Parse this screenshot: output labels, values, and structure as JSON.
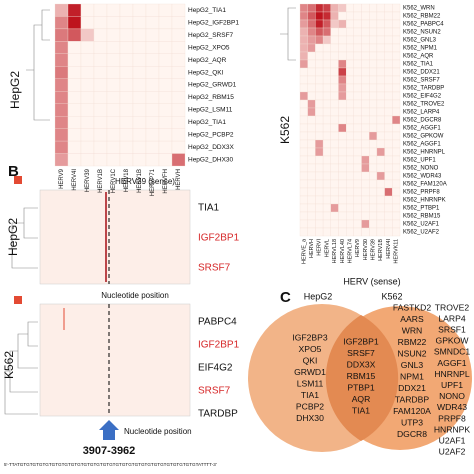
{
  "panel_a": {
    "hepg2": {
      "label": "HepG2",
      "rows": [
        "HepG2_TIA1",
        "HepG2_IGF2BP1",
        "HepG2_SRSF7",
        "HepG2_XPO5",
        "HepG2_AQR",
        "HepG2_QKI",
        "HepG2_GRWD1",
        "HepG2_RBM15",
        "HepG2_LSM11",
        "HepG2_TIA1",
        "HepG2_PCBP2",
        "HepG2_DDX3X",
        "HepG2_DHX30"
      ],
      "columns": [
        "HERV9",
        "HERV4I",
        "HERV39",
        "HERV1B",
        "HERV1C",
        "HERV18",
        "HERV1B",
        "HERVP71",
        "HERVFH",
        "HERVH"
      ],
      "values": [
        [
          0.3,
          0.95,
          0,
          0,
          0,
          0,
          0,
          0,
          0,
          0
        ],
        [
          0.5,
          1,
          0,
          0,
          0,
          0,
          0,
          0,
          0,
          0
        ],
        [
          0.55,
          0.7,
          0.2,
          0,
          0,
          0,
          0,
          0,
          0,
          0
        ],
        [
          0.5,
          0,
          0,
          0,
          0,
          0,
          0,
          0,
          0,
          0
        ],
        [
          0.5,
          0,
          0,
          0,
          0,
          0,
          0,
          0,
          0,
          0
        ],
        [
          0.55,
          0,
          0,
          0,
          0,
          0,
          0,
          0,
          0,
          0
        ],
        [
          0.5,
          0,
          0,
          0,
          0,
          0,
          0,
          0,
          0,
          0
        ],
        [
          0.5,
          0,
          0,
          0,
          0,
          0,
          0,
          0,
          0,
          0
        ],
        [
          0.5,
          0,
          0,
          0,
          0,
          0,
          0,
          0,
          0,
          0
        ],
        [
          0.5,
          0,
          0,
          0,
          0,
          0,
          0,
          0,
          0,
          0
        ],
        [
          0.5,
          0,
          0,
          0,
          0,
          0,
          0,
          0,
          0,
          0
        ],
        [
          0.5,
          0,
          0,
          0,
          0,
          0,
          0,
          0,
          0,
          0
        ],
        [
          0.4,
          0,
          0,
          0,
          0,
          0,
          0,
          0,
          0,
          0.6
        ]
      ]
    },
    "k562": {
      "label": "K562",
      "rows": [
        "K562_WRN",
        "K562_RBM22",
        "K562_PABPC4",
        "K562_NSUN2",
        "K562_GNL3",
        "K562_NPM1",
        "K562_AQR",
        "K562_TIA1",
        "K562_DDX21",
        "K562_SRSF7",
        "K562_TARDBP",
        "K562_EIF4G2",
        "K562_TROVE2",
        "K562_LARP4",
        "K562_DGCR8",
        "K562_AGGF1",
        "K562_GPKOW",
        "K562_AGGF1",
        "K562_HNRNPL",
        "K562_UPF1",
        "K562_NONO",
        "K562_WDR43",
        "K562_FAM120A",
        "K562_PRPF8",
        "K562_HNRNPK",
        "K562_PTBP1",
        "K562_RBM15",
        "K562_U2AF1",
        "K562_U2AF2"
      ],
      "columns": [
        "HERVE_a",
        "HERVH",
        "HERVI",
        "HERVL",
        "HERVL18",
        "HERVL40",
        "HERVL74",
        "HERV9",
        "HERV30",
        "HERV39",
        "HERV1B",
        "HERV4I",
        "HERVK11"
      ],
      "values": [
        [
          0.5,
          0.6,
          0.9,
          0.8,
          0.3,
          0.2,
          0,
          0,
          0,
          0,
          0,
          0,
          0
        ],
        [
          0.5,
          0.7,
          1,
          0.9,
          0.3,
          0,
          0,
          0,
          0,
          0,
          0,
          0,
          0
        ],
        [
          0.4,
          0.6,
          0.95,
          0.7,
          0.2,
          0.3,
          0,
          0,
          0,
          0,
          0,
          0,
          0
        ],
        [
          0.3,
          0.5,
          0.7,
          0.6,
          0,
          0,
          0,
          0,
          0,
          0,
          0,
          0,
          0
        ],
        [
          0.3,
          0.4,
          0.5,
          0.2,
          0,
          0,
          0,
          0,
          0,
          0,
          0,
          0,
          0
        ],
        [
          0.3,
          0.4,
          0,
          0,
          0,
          0,
          0,
          0,
          0,
          0,
          0,
          0,
          0
        ],
        [
          0.3,
          0,
          0,
          0,
          0,
          0,
          0,
          0,
          0,
          0,
          0,
          0,
          0
        ],
        [
          0.4,
          0,
          0,
          0,
          0,
          0.5,
          0,
          0,
          0,
          0,
          0,
          0,
          0
        ],
        [
          0,
          0,
          0,
          0,
          0,
          0.8,
          0,
          0,
          0,
          0,
          0,
          0,
          0
        ],
        [
          0,
          0,
          0,
          0,
          0,
          0.5,
          0,
          0,
          0,
          0,
          0,
          0,
          0
        ],
        [
          0,
          0,
          0,
          0,
          0,
          0.4,
          0,
          0,
          0,
          0,
          0,
          0,
          0
        ],
        [
          0.4,
          0,
          0,
          0,
          0,
          0.4,
          0,
          0,
          0,
          0,
          0,
          0,
          0
        ],
        [
          0,
          0.4,
          0,
          0,
          0,
          0,
          0,
          0,
          0,
          0,
          0,
          0,
          0
        ],
        [
          0,
          0.4,
          0,
          0,
          0,
          0,
          0,
          0,
          0,
          0,
          0,
          0,
          0
        ],
        [
          0,
          0,
          0,
          0,
          0,
          0,
          0,
          0,
          0,
          0,
          0,
          0,
          0.5
        ],
        [
          0,
          0,
          0,
          0,
          0,
          0.5,
          0,
          0,
          0,
          0,
          0,
          0,
          0
        ],
        [
          0,
          0,
          0,
          0,
          0,
          0,
          0,
          0,
          0,
          0.4,
          0,
          0,
          0
        ],
        [
          0,
          0,
          0.4,
          0,
          0,
          0,
          0,
          0,
          0,
          0,
          0,
          0,
          0
        ],
        [
          0,
          0,
          0.4,
          0,
          0,
          0,
          0,
          0,
          0,
          0,
          0.4,
          0,
          0
        ],
        [
          0,
          0,
          0,
          0,
          0,
          0,
          0,
          0,
          0.4,
          0,
          0,
          0,
          0
        ],
        [
          0,
          0,
          0,
          0,
          0,
          0,
          0,
          0,
          0.4,
          0,
          0,
          0,
          0
        ],
        [
          0,
          0,
          0,
          0,
          0,
          0,
          0,
          0,
          0,
          0,
          0.4,
          0,
          0
        ],
        [
          0,
          0,
          0,
          0,
          0,
          0,
          0,
          0,
          0,
          0,
          0,
          0,
          0
        ],
        [
          0,
          0,
          0,
          0,
          0,
          0,
          0,
          0,
          0,
          0,
          0,
          0.6,
          0
        ],
        [
          0,
          0,
          0,
          0,
          0,
          0,
          0,
          0,
          0,
          0,
          0,
          0,
          0
        ],
        [
          0,
          0,
          0,
          0,
          0.4,
          0,
          0,
          0,
          0,
          0,
          0,
          0,
          0
        ],
        [
          0,
          0,
          0,
          0,
          0,
          0,
          0,
          0,
          0,
          0,
          0,
          0,
          0
        ],
        [
          0,
          0,
          0,
          0,
          0,
          0,
          0,
          0,
          0.4,
          0,
          0,
          0,
          0
        ],
        [
          0,
          0,
          0,
          0,
          0,
          0,
          0,
          0,
          0,
          0,
          0,
          0,
          0
        ]
      ]
    }
  },
  "panel_b": {
    "label": "B",
    "title": "HERV39 (sense)",
    "x_label": "Nucleotide position",
    "hepg2": {
      "label": "HepG2",
      "rows": [
        {
          "name": "TIA1",
          "highlight": false
        },
        {
          "name": "IGF2BP1",
          "highlight": true
        },
        {
          "name": "SRSF7",
          "highlight": true
        }
      ]
    },
    "k562": {
      "label": "K562",
      "rows": [
        {
          "name": "PABPC4",
          "highlight": false
        },
        {
          "name": "IGF2BP1",
          "highlight": true
        },
        {
          "name": "EIF4G2",
          "highlight": false
        },
        {
          "name": "SRSF7",
          "highlight": true
        },
        {
          "name": "TARDBP",
          "highlight": false
        }
      ]
    },
    "position": "3907-3962",
    "sequence": "5'-TTATGTGTGTGTGTGTGTGTGTGTGTGTGTGTGTGTGTGTGTGTGTGTGTGTGTGTGTGTATTTT-3'"
  },
  "panel_c": {
    "label": "C",
    "title": "HERV (sense)",
    "set_a": "HepG2",
    "set_b": "K562",
    "a_only": [
      "IGF2BP3",
      "XPO5",
      "QKI",
      "GRWD1",
      "LSM11",
      "TIA1",
      "PCBP2",
      "DHX30"
    ],
    "both": [
      "IGF2BP1",
      "SRSF7",
      "DDX3X",
      "RBM15",
      "PTBP1",
      "AQR",
      "TIA1"
    ],
    "b_only_1": [
      "FASTKD2",
      "AARS",
      "WRN",
      "RBM22",
      "NSUN2",
      "GNL3",
      "NPM1",
      "DDX21",
      "TARDBP",
      "FAM120A",
      "UTP3",
      "DGCR8"
    ],
    "b_only_2": [
      "TROVE2",
      "LARP4",
      "SRSF1",
      "GPKOW",
      "SMNDC1",
      "AGGF1",
      "HNRNPL",
      "UPF1",
      "NONO",
      "WDR43",
      "PRPF8",
      "HNRNPK",
      "U2AF1",
      "U2AF2"
    ]
  }
}
